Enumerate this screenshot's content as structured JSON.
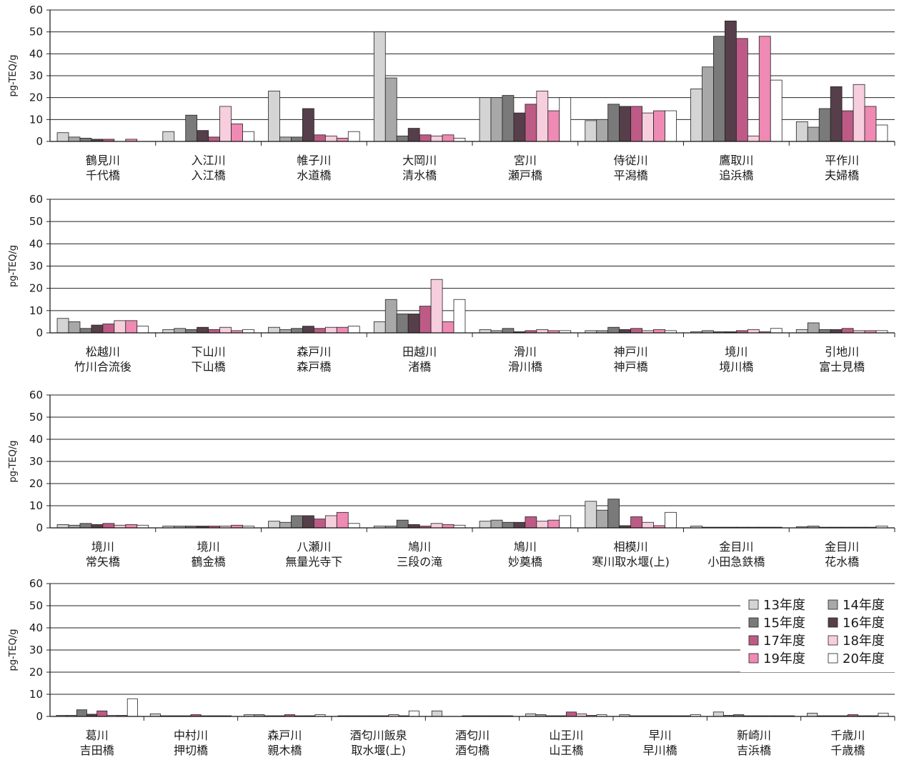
{
  "chart_data": [
    {
      "type": "bar",
      "ylabel": "pg-TEQ/g",
      "ylim": [
        0,
        60
      ],
      "yticks": [
        0,
        10,
        20,
        30,
        40,
        50,
        60
      ],
      "grid": true,
      "categories": [
        [
          "鶴見川",
          "千代橋"
        ],
        [
          "入江川",
          "入江橋"
        ],
        [
          "帷子川",
          "水道橋"
        ],
        [
          "大岡川",
          "清水橋"
        ],
        [
          "宮川",
          "瀬戸橋"
        ],
        [
          "侍従川",
          "平潟橋"
        ],
        [
          "鷹取川",
          "追浜橋"
        ],
        [
          "平作川",
          "夫婦橋"
        ]
      ],
      "series": [
        {
          "name": "13年度",
          "values": [
            4,
            4.5,
            23,
            50,
            20,
            9.5,
            24,
            9
          ]
        },
        {
          "name": "14年度",
          "values": [
            2,
            0,
            2,
            29,
            20,
            10,
            34,
            6.5
          ]
        },
        {
          "name": "15年度",
          "values": [
            1.5,
            12,
            2,
            2.5,
            21,
            17,
            48,
            15
          ]
        },
        {
          "name": "16年度",
          "values": [
            1,
            5,
            15,
            6,
            13,
            16,
            55,
            25
          ]
        },
        {
          "name": "17年度",
          "values": [
            1,
            2,
            3,
            3,
            17,
            16,
            47,
            14
          ]
        },
        {
          "name": "18年度",
          "values": [
            0,
            16,
            2.5,
            2.5,
            23,
            13,
            2.5,
            26
          ]
        },
        {
          "name": "19年度",
          "values": [
            1,
            8,
            1.5,
            3,
            14,
            14,
            48,
            16
          ]
        },
        {
          "name": "20年度",
          "values": [
            0,
            4.5,
            4.5,
            1.5,
            20,
            14,
            28,
            7.5
          ]
        }
      ]
    },
    {
      "type": "bar",
      "ylabel": "pg-TEQ/g",
      "ylim": [
        0,
        60
      ],
      "yticks": [
        0,
        10,
        20,
        30,
        40,
        50,
        60
      ],
      "grid": true,
      "categories": [
        [
          "松越川",
          "竹川合流後"
        ],
        [
          "下山川",
          "下山橋"
        ],
        [
          "森戸川",
          "森戸橋"
        ],
        [
          "田越川",
          "渚橋"
        ],
        [
          "滑川",
          "滑川橋"
        ],
        [
          "神戸川",
          "神戸橋"
        ],
        [
          "境川",
          "境川橋"
        ],
        [
          "引地川",
          "富士見橋"
        ]
      ],
      "series": [
        {
          "name": "13年度",
          "values": [
            6.5,
            1.5,
            2.5,
            5,
            1.5,
            1,
            0.5,
            1.5
          ]
        },
        {
          "name": "14年度",
          "values": [
            5,
            2,
            1.5,
            15,
            1,
            1,
            1,
            4.5
          ]
        },
        {
          "name": "15年度",
          "values": [
            2,
            1.5,
            2,
            8.5,
            2,
            2.5,
            0.5,
            1.5
          ]
        },
        {
          "name": "16年度",
          "values": [
            3.5,
            2.5,
            3,
            8.5,
            0.5,
            1.5,
            0.5,
            1.5
          ]
        },
        {
          "name": "17年度",
          "values": [
            4,
            1.5,
            2,
            12,
            1,
            2,
            1,
            2
          ]
        },
        {
          "name": "18年度",
          "values": [
            5.5,
            2.5,
            2.5,
            24,
            1.5,
            1,
            1.5,
            1
          ]
        },
        {
          "name": "19年度",
          "values": [
            5.5,
            1,
            2.5,
            5,
            1,
            1.5,
            0.5,
            1
          ]
        },
        {
          "name": "20年度",
          "values": [
            3,
            1.5,
            3,
            15,
            1,
            1,
            2,
            1
          ]
        }
      ]
    },
    {
      "type": "bar",
      "ylabel": "pg-TEQ/g",
      "ylim": [
        0,
        60
      ],
      "yticks": [
        0,
        10,
        20,
        30,
        40,
        50,
        60
      ],
      "grid": true,
      "categories": [
        [
          "境川",
          "常矢橋"
        ],
        [
          "境川",
          "鶴金橋"
        ],
        [
          "八瀬川",
          "無量光寺下"
        ],
        [
          "鳩川",
          "三段の滝"
        ],
        [
          "鳩川",
          "妙奠橋"
        ],
        [
          "相模川",
          "寒川取水堰(上)"
        ],
        [
          "金目川",
          "小田急鉄橋"
        ],
        [
          "金目川",
          "花水橋"
        ]
      ],
      "series": [
        {
          "name": "13年度",
          "values": [
            1.5,
            0.8,
            3,
            0.8,
            3,
            12,
            0.8,
            0.5
          ]
        },
        {
          "name": "14年度",
          "values": [
            1.2,
            0.8,
            2.5,
            0.8,
            3.5,
            8,
            0.3,
            0.8
          ]
        },
        {
          "name": "15年度",
          "values": [
            2,
            0.8,
            5.5,
            3.5,
            2.5,
            13,
            0.3,
            0.3
          ]
        },
        {
          "name": "16年度",
          "values": [
            1.5,
            0.8,
            5.5,
            1.5,
            2.5,
            1,
            0.3,
            0.3
          ]
        },
        {
          "name": "17年度",
          "values": [
            2,
            0.8,
            4,
            0.8,
            5,
            5,
            0.3,
            0.3
          ]
        },
        {
          "name": "18年度",
          "values": [
            1.2,
            0.8,
            5.5,
            2,
            3,
            2.5,
            0.3,
            0.3
          ]
        },
        {
          "name": "19年度",
          "values": [
            1.5,
            1.2,
            7,
            1.5,
            3.5,
            1,
            0.3,
            0.3
          ]
        },
        {
          "name": "20年度",
          "values": [
            1.2,
            0.8,
            2,
            1.2,
            5.5,
            7,
            0.3,
            0.8
          ]
        }
      ]
    },
    {
      "type": "bar",
      "ylabel": "pg-TEQ/g",
      "ylim": [
        0,
        60
      ],
      "yticks": [
        0,
        10,
        20,
        30,
        40,
        50,
        60
      ],
      "grid": true,
      "legend_position": "right",
      "categories": [
        [
          "葛川",
          "吉田橋"
        ],
        [
          "中村川",
          "押切橋"
        ],
        [
          "森戸川",
          "親木橋"
        ],
        [
          "酒匂川飯泉",
          "取水堰(上)"
        ],
        [
          "酒匂川",
          "酒匂橋"
        ],
        [
          "山王川",
          "山王橋"
        ],
        [
          "早川",
          "早川橋"
        ],
        [
          "新崎川",
          "吉浜橋"
        ],
        [
          "千歳川",
          "千歳橋"
        ]
      ],
      "series": [
        {
          "name": "13年度",
          "values": [
            0.5,
            1.2,
            0.8,
            0.3,
            2.5,
            1.2,
            0.8,
            2,
            1.5
          ]
        },
        {
          "name": "14年度",
          "values": [
            0.5,
            0.3,
            0.8,
            0.3,
            0,
            0.8,
            0.3,
            0.5,
            0.3
          ]
        },
        {
          "name": "15年度",
          "values": [
            3,
            0.3,
            0.3,
            0.3,
            0,
            0.3,
            0.3,
            0.8,
            0.3
          ]
        },
        {
          "name": "16年度",
          "values": [
            1,
            0.3,
            0.3,
            0.3,
            0.3,
            0.3,
            0.3,
            0.3,
            0.3
          ]
        },
        {
          "name": "17年度",
          "values": [
            2.5,
            0.8,
            0.8,
            0.3,
            0.3,
            2,
            0.3,
            0.3,
            0.8
          ]
        },
        {
          "name": "18年度",
          "values": [
            0.5,
            0.3,
            0.3,
            0.8,
            0.3,
            1.2,
            0.3,
            0.3,
            0.3
          ]
        },
        {
          "name": "19年度",
          "values": [
            0.5,
            0.3,
            0.3,
            0.3,
            0.3,
            0.5,
            0.3,
            0.3,
            0.3
          ]
        },
        {
          "name": "20年度",
          "values": [
            8,
            0.3,
            0.8,
            2.5,
            0.3,
            0.8,
            0.8,
            0.3,
            1.5
          ]
        }
      ]
    }
  ],
  "legend": {
    "items": [
      "13年度",
      "14年度",
      "15年度",
      "16年度",
      "17年度",
      "18年度",
      "19年度",
      "20年度"
    ],
    "colors": [
      "#d4d4d4",
      "#a8a8a8",
      "#7a7a7a",
      "#563f4a",
      "#bd5b86",
      "#f7cedd",
      "#ee8ab3",
      "#ffffff"
    ]
  }
}
